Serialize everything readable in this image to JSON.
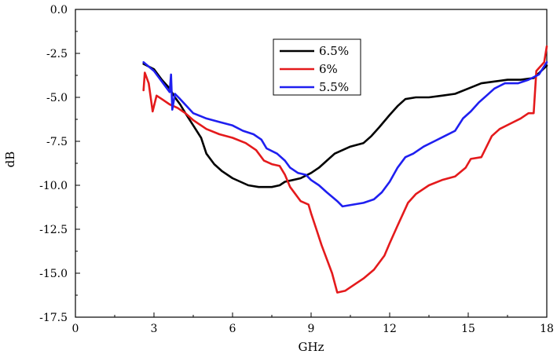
{
  "chart_data": {
    "type": "line",
    "title": "",
    "xlabel": "GHz",
    "ylabel": "dB",
    "xlim": [
      0,
      18
    ],
    "ylim": [
      -17.5,
      0.0
    ],
    "xticks": [
      0,
      3,
      6,
      9,
      12,
      15,
      18
    ],
    "xtick_labels": [
      "0",
      "3",
      "6",
      "9",
      "12",
      "15",
      "18"
    ],
    "yticks": [
      0.0,
      -2.5,
      -5.0,
      -7.5,
      -10.0,
      -12.5,
      -15.0,
      -17.5
    ],
    "ytick_labels": [
      "0.0",
      "-2.5",
      "-5.0",
      "-7.5",
      "-10.0",
      "-12.5",
      "-15.0",
      "-17.5"
    ],
    "grid": false,
    "legend_position": "top-center",
    "series": [
      {
        "name": "6.5%",
        "color": "#000000",
        "points": [
          [
            2.6,
            -3.1
          ],
          [
            3.0,
            -3.4
          ],
          [
            3.3,
            -4.0
          ],
          [
            3.6,
            -4.5
          ],
          [
            3.8,
            -5.0
          ],
          [
            4.0,
            -5.4
          ],
          [
            4.2,
            -5.9
          ],
          [
            4.5,
            -6.6
          ],
          [
            4.8,
            -7.3
          ],
          [
            5.0,
            -8.2
          ],
          [
            5.3,
            -8.8
          ],
          [
            5.6,
            -9.2
          ],
          [
            6.0,
            -9.6
          ],
          [
            6.3,
            -9.8
          ],
          [
            6.6,
            -10.0
          ],
          [
            7.0,
            -10.1
          ],
          [
            7.5,
            -10.1
          ],
          [
            7.8,
            -10.0
          ],
          [
            8.0,
            -9.8
          ],
          [
            8.3,
            -9.7
          ],
          [
            8.6,
            -9.6
          ],
          [
            9.0,
            -9.3
          ],
          [
            9.3,
            -9.0
          ],
          [
            9.6,
            -8.6
          ],
          [
            9.9,
            -8.2
          ],
          [
            10.2,
            -8.0
          ],
          [
            10.5,
            -7.8
          ],
          [
            11.0,
            -7.6
          ],
          [
            11.3,
            -7.2
          ],
          [
            11.6,
            -6.7
          ],
          [
            12.0,
            -6.0
          ],
          [
            12.3,
            -5.5
          ],
          [
            12.6,
            -5.1
          ],
          [
            13.0,
            -5.0
          ],
          [
            13.5,
            -5.0
          ],
          [
            14.0,
            -4.9
          ],
          [
            14.5,
            -4.8
          ],
          [
            15.0,
            -4.5
          ],
          [
            15.5,
            -4.2
          ],
          [
            16.0,
            -4.1
          ],
          [
            16.5,
            -4.0
          ],
          [
            17.0,
            -4.0
          ],
          [
            17.5,
            -3.9
          ],
          [
            18.0,
            -3.2
          ]
        ]
      },
      {
        "name": "6%",
        "color": "#e41a1c",
        "points": [
          [
            2.6,
            -4.6
          ],
          [
            2.65,
            -3.6
          ],
          [
            2.8,
            -4.2
          ],
          [
            2.95,
            -5.8
          ],
          [
            3.1,
            -4.9
          ],
          [
            3.3,
            -5.1
          ],
          [
            3.6,
            -5.4
          ],
          [
            3.9,
            -5.6
          ],
          [
            4.2,
            -5.9
          ],
          [
            4.5,
            -6.3
          ],
          [
            5.0,
            -6.8
          ],
          [
            5.5,
            -7.1
          ],
          [
            6.0,
            -7.3
          ],
          [
            6.5,
            -7.6
          ],
          [
            6.9,
            -8.0
          ],
          [
            7.2,
            -8.6
          ],
          [
            7.5,
            -8.8
          ],
          [
            7.8,
            -8.9
          ],
          [
            8.0,
            -9.4
          ],
          [
            8.2,
            -10.1
          ],
          [
            8.4,
            -10.5
          ],
          [
            8.6,
            -10.9
          ],
          [
            8.9,
            -11.1
          ],
          [
            9.0,
            -11.6
          ],
          [
            9.2,
            -12.5
          ],
          [
            9.4,
            -13.4
          ],
          [
            9.6,
            -14.2
          ],
          [
            9.8,
            -15.0
          ],
          [
            10.0,
            -16.1
          ],
          [
            10.3,
            -16.0
          ],
          [
            10.6,
            -15.7
          ],
          [
            11.0,
            -15.3
          ],
          [
            11.4,
            -14.8
          ],
          [
            11.8,
            -14.0
          ],
          [
            12.0,
            -13.3
          ],
          [
            12.3,
            -12.3
          ],
          [
            12.7,
            -11.0
          ],
          [
            13.0,
            -10.5
          ],
          [
            13.5,
            -10.0
          ],
          [
            14.0,
            -9.7
          ],
          [
            14.5,
            -9.5
          ],
          [
            14.9,
            -9.0
          ],
          [
            15.1,
            -8.5
          ],
          [
            15.5,
            -8.4
          ],
          [
            15.9,
            -7.2
          ],
          [
            16.2,
            -6.8
          ],
          [
            16.6,
            -6.5
          ],
          [
            17.0,
            -6.2
          ],
          [
            17.3,
            -5.9
          ],
          [
            17.5,
            -5.9
          ],
          [
            17.6,
            -3.5
          ],
          [
            17.9,
            -3.0
          ],
          [
            18.0,
            -2.1
          ]
        ]
      },
      {
        "name": "5.5%",
        "color": "#1f1ff0",
        "points": [
          [
            2.6,
            -3.0
          ],
          [
            3.0,
            -3.5
          ],
          [
            3.3,
            -4.1
          ],
          [
            3.6,
            -4.7
          ],
          [
            3.65,
            -3.7
          ],
          [
            3.7,
            -5.7
          ],
          [
            3.8,
            -4.8
          ],
          [
            4.0,
            -5.1
          ],
          [
            4.5,
            -5.9
          ],
          [
            5.0,
            -6.2
          ],
          [
            5.5,
            -6.4
          ],
          [
            6.0,
            -6.6
          ],
          [
            6.4,
            -6.9
          ],
          [
            6.8,
            -7.1
          ],
          [
            7.1,
            -7.4
          ],
          [
            7.3,
            -7.9
          ],
          [
            7.7,
            -8.2
          ],
          [
            8.0,
            -8.6
          ],
          [
            8.2,
            -9.0
          ],
          [
            8.5,
            -9.3
          ],
          [
            8.8,
            -9.4
          ],
          [
            9.0,
            -9.7
          ],
          [
            9.3,
            -10.0
          ],
          [
            9.6,
            -10.4
          ],
          [
            10.0,
            -10.9
          ],
          [
            10.2,
            -11.2
          ],
          [
            10.6,
            -11.1
          ],
          [
            11.0,
            -11.0
          ],
          [
            11.4,
            -10.8
          ],
          [
            11.7,
            -10.4
          ],
          [
            12.0,
            -9.8
          ],
          [
            12.3,
            -9.0
          ],
          [
            12.6,
            -8.4
          ],
          [
            12.9,
            -8.2
          ],
          [
            13.3,
            -7.8
          ],
          [
            13.7,
            -7.5
          ],
          [
            14.1,
            -7.2
          ],
          [
            14.5,
            -6.9
          ],
          [
            14.8,
            -6.2
          ],
          [
            15.1,
            -5.8
          ],
          [
            15.4,
            -5.3
          ],
          [
            15.7,
            -4.9
          ],
          [
            16.0,
            -4.5
          ],
          [
            16.4,
            -4.2
          ],
          [
            16.9,
            -4.2
          ],
          [
            17.3,
            -4.0
          ],
          [
            17.7,
            -3.7
          ],
          [
            18.0,
            -3.0
          ]
        ]
      }
    ]
  }
}
